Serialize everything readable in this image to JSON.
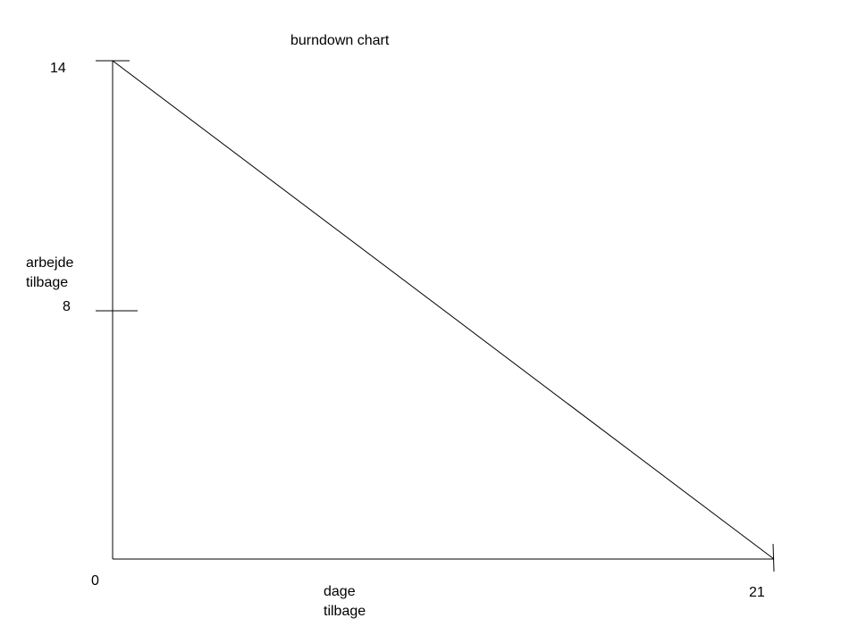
{
  "chart_data": {
    "type": "line",
    "title": "burndown chart",
    "xlabel": [
      "dage",
      "tilbage"
    ],
    "ylabel": [
      "arbejde",
      "tilbage"
    ],
    "xlim": [
      0,
      21
    ],
    "ylim": [
      0,
      14
    ],
    "y_ticks": [
      14,
      8
    ],
    "x_ticks": [
      21
    ],
    "origin_label": "0",
    "grid": false,
    "series": [
      {
        "x": [
          0,
          21
        ],
        "y": [
          14,
          0
        ],
        "color": "#000000"
      }
    ]
  }
}
